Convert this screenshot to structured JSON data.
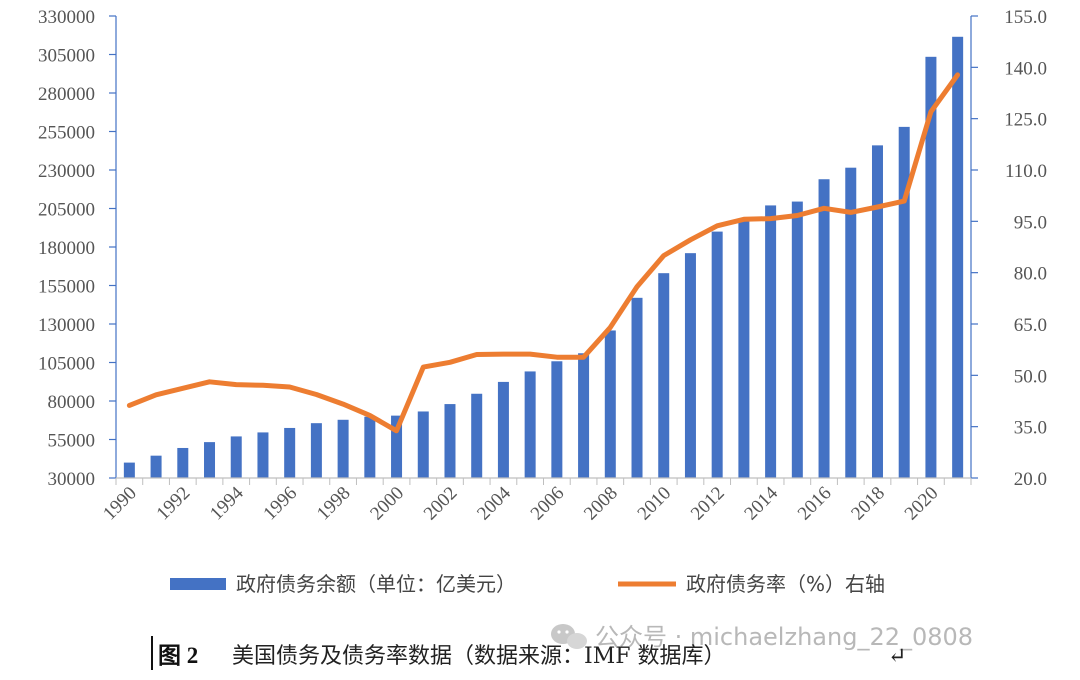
{
  "chart_data": {
    "type": "bar+line",
    "title": "",
    "categories": [
      1990,
      1991,
      1992,
      1993,
      1994,
      1995,
      1996,
      1997,
      1998,
      1999,
      2000,
      2001,
      2002,
      2003,
      2004,
      2005,
      2006,
      2007,
      2008,
      2009,
      2010,
      2011,
      2012,
      2013,
      2014,
      2015,
      2016,
      2017,
      2018,
      2019,
      2020,
      2021
    ],
    "x_tick_labels": [
      "1990",
      "1992",
      "1994",
      "1996",
      "1998",
      "2000",
      "2002",
      "2004",
      "2006",
      "2008",
      "2010",
      "2012",
      "2014",
      "2016",
      "2018",
      "2020"
    ],
    "series": [
      {
        "name": "政府债务余额（单位：亿美元）",
        "type": "bar",
        "axis": "left",
        "color": "#4472C4",
        "values": [
          40000,
          44500,
          49500,
          53300,
          57000,
          59600,
          62500,
          65600,
          67800,
          69800,
          70500,
          73200,
          78000,
          84700,
          92400,
          99200,
          105800,
          111000,
          125800,
          147000,
          163000,
          176000,
          190000,
          197000,
          207000,
          209500,
          224000,
          231500,
          246000,
          258000,
          303500,
          316500
        ]
      },
      {
        "name": "政府债务率（%）右轴",
        "type": "line",
        "axis": "right",
        "color": "#ED7D31",
        "values": [
          41.2,
          44.3,
          46.2,
          48.1,
          47.3,
          47.1,
          46.6,
          44.4,
          41.6,
          38.3,
          33.8,
          52.4,
          53.8,
          56.1,
          56.2,
          56.2,
          55.3,
          55.3,
          64.0,
          75.9,
          85.0,
          89.6,
          93.7,
          95.6,
          95.8,
          96.7,
          98.8,
          97.6,
          99.2,
          100.9,
          127.0,
          137.8
        ]
      }
    ],
    "y_left": {
      "min": 30000,
      "max": 330000,
      "step": 25000,
      "ticks": [
        "30000",
        "55000",
        "80000",
        "105000",
        "130000",
        "155000",
        "180000",
        "205000",
        "230000",
        "255000",
        "280000",
        "305000",
        "330000"
      ]
    },
    "y_right": {
      "min": 20,
      "max": 155,
      "step": 15,
      "ticks": [
        "20.0",
        "35.0",
        "50.0",
        "65.0",
        "80.0",
        "95.0",
        "110.0",
        "125.0",
        "140.0",
        "155.0"
      ]
    },
    "legend_position": "bottom",
    "grid": false
  },
  "legend": {
    "bar_label": "政府债务余额（单位：亿美元）",
    "line_label": "政府债务率（%）右轴"
  },
  "caption": {
    "figure_number": "图 2",
    "text": "美国债务及债务率数据（数据来源：IMF 数据库）"
  },
  "watermark": {
    "text": "公众号 · michaelzhang_22_0808"
  }
}
